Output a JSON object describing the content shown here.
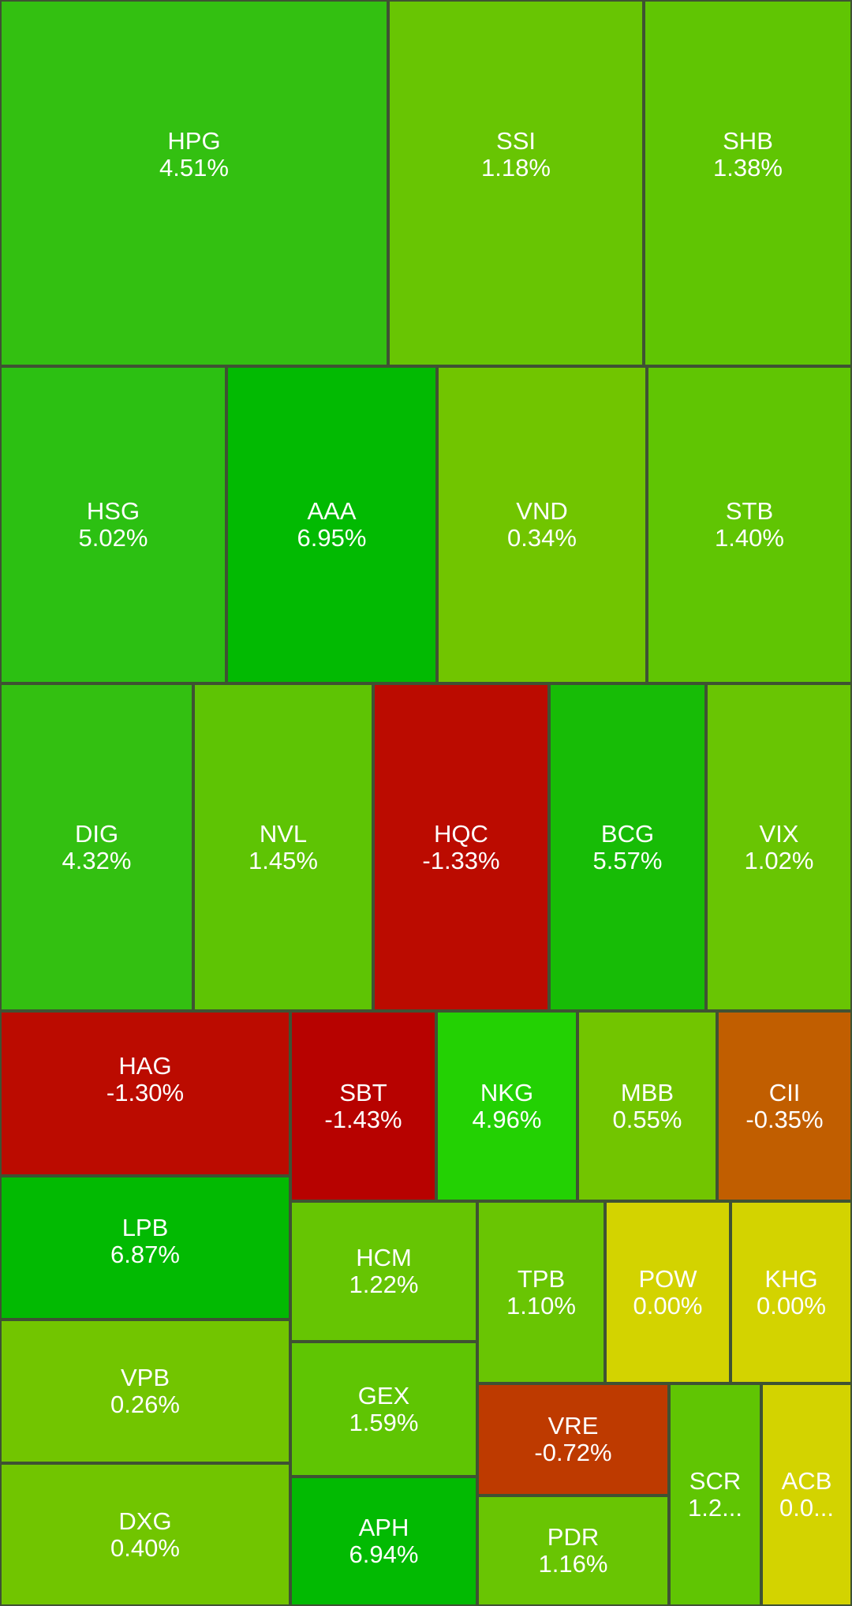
{
  "chart_data": {
    "type": "treemap",
    "colors": {
      "HPG": "#33c011",
      "SSI": "#68c503",
      "SHB": "#60c503",
      "HSG": "#2cc012",
      "AAA": "#02ba02",
      "VND": "#71c500",
      "STB": "#60c503",
      "DIG": "#33c011",
      "NVL": "#5ec404",
      "HQC": "#bb0b00",
      "BCG": "#17bc06",
      "VIX": "#69c503",
      "HAG": "#bb0b00",
      "SBT": "#b70200",
      "NKG": "#23d103",
      "MBB": "#72c500",
      "CII": "#c15e00",
      "LPB": "#02ba02",
      "HCM": "#66c503",
      "TPB": "#69c503",
      "POW": "#d3d300",
      "KHG": "#d3d300",
      "VPB": "#72c500",
      "GEX": "#5fc503",
      "VRE": "#be3a00",
      "SCR": "#60c503",
      "ACB": "#d3d300",
      "DXG": "#71c500",
      "APH": "#02ba02",
      "PDR": "#69c503"
    },
    "items": [
      {
        "symbol": "HPG",
        "change": "4.51%",
        "value": 4.51
      },
      {
        "symbol": "SSI",
        "change": "1.18%",
        "value": 1.18
      },
      {
        "symbol": "SHB",
        "change": "1.38%",
        "value": 1.38
      },
      {
        "symbol": "HSG",
        "change": "5.02%",
        "value": 5.02
      },
      {
        "symbol": "AAA",
        "change": "6.95%",
        "value": 6.95
      },
      {
        "symbol": "VND",
        "change": "0.34%",
        "value": 0.34
      },
      {
        "symbol": "STB",
        "change": "1.40%",
        "value": 1.4
      },
      {
        "symbol": "DIG",
        "change": "4.32%",
        "value": 4.32
      },
      {
        "symbol": "NVL",
        "change": "1.45%",
        "value": 1.45
      },
      {
        "symbol": "HQC",
        "change": "-1.33%",
        "value": -1.33
      },
      {
        "symbol": "BCG",
        "change": "5.57%",
        "value": 5.57
      },
      {
        "symbol": "VIX",
        "change": "1.02%",
        "value": 1.02
      },
      {
        "symbol": "HAG",
        "change": "-1.30%",
        "value": -1.3
      },
      {
        "symbol": "SBT",
        "change": "-1.43%",
        "value": -1.43
      },
      {
        "symbol": "NKG",
        "change": "4.96%",
        "value": 4.96
      },
      {
        "symbol": "MBB",
        "change": "0.55%",
        "value": 0.55
      },
      {
        "symbol": "CII",
        "change": "-0.35%",
        "value": -0.35
      },
      {
        "symbol": "LPB",
        "change": "6.87%",
        "value": 6.87
      },
      {
        "symbol": "HCM",
        "change": "1.22%",
        "value": 1.22
      },
      {
        "symbol": "TPB",
        "change": "1.10%",
        "value": 1.1
      },
      {
        "symbol": "POW",
        "change": "0.00%",
        "value": 0.0
      },
      {
        "symbol": "KHG",
        "change": "0.00%",
        "value": 0.0
      },
      {
        "symbol": "VPB",
        "change": "0.26%",
        "value": 0.26
      },
      {
        "symbol": "GEX",
        "change": "1.59%",
        "value": 1.59
      },
      {
        "symbol": "VRE",
        "change": "-0.72%",
        "value": -0.72
      },
      {
        "symbol": "SCR",
        "change": "1.2...",
        "value": null
      },
      {
        "symbol": "ACB",
        "change": "0.0...",
        "value": null
      },
      {
        "symbol": "DXG",
        "change": "0.40%",
        "value": 0.4
      },
      {
        "symbol": "APH",
        "change": "6.94%",
        "value": 6.94
      },
      {
        "symbol": "PDR",
        "change": "1.16%",
        "value": 1.16
      }
    ]
  }
}
